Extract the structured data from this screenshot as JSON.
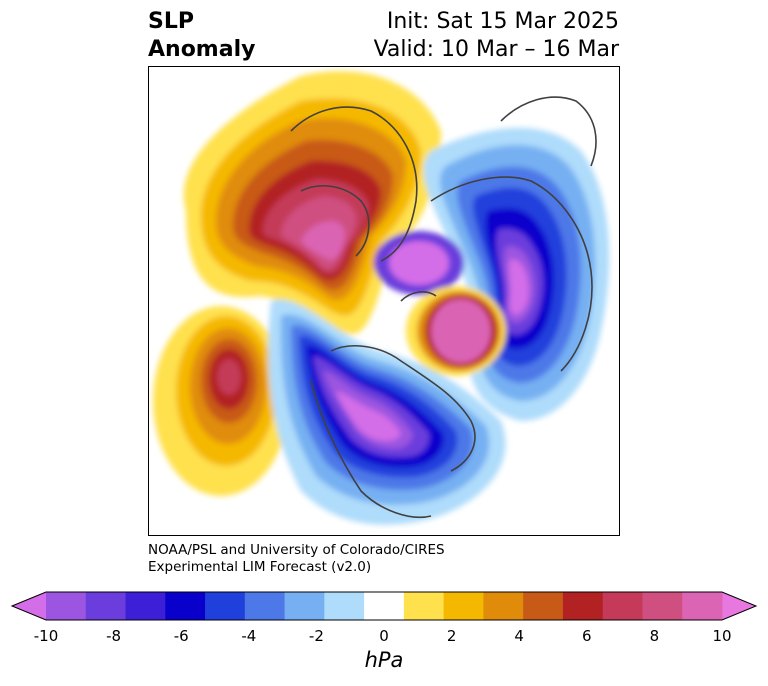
{
  "title": {
    "variable": "SLP",
    "subtitle": "Anomaly",
    "init": "Init: Sat 15 Mar 2025",
    "valid": "Valid: 10 Mar – 16 Mar"
  },
  "credit": {
    "line1": "NOAA/PSL and University of Colorado/CIRES",
    "line2": "Experimental LIM Forecast (v2.0)"
  },
  "colorbar": {
    "unit": "hPa",
    "ticks": [
      "-10",
      "-8",
      "-6",
      "-4",
      "-2",
      "0",
      "2",
      "4",
      "6",
      "8",
      "10"
    ],
    "tick_values": [
      -10,
      -8,
      -6,
      -4,
      -2,
      0,
      2,
      4,
      6,
      8,
      10
    ],
    "range": [
      -10,
      10
    ],
    "colors": [
      "#d46de8",
      "#9b55e0",
      "#6a3ddc",
      "#3c1fd6",
      "#0a00cc",
      "#2040dc",
      "#4d78e8",
      "#76b0f2",
      "#afdcfb",
      "#ffffff",
      "#ffe14e",
      "#f5b800",
      "#e08c0a",
      "#c85a18",
      "#b22222",
      "#c43a58",
      "#cf4f80",
      "#db64b4",
      "#e878e0"
    ]
  },
  "map": {
    "projection": "north polar stereographic",
    "field": "sea level pressure anomaly"
  }
}
